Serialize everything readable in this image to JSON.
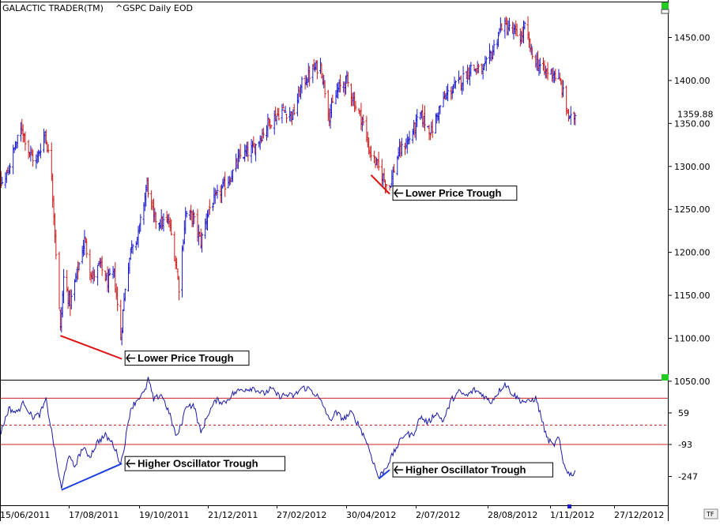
{
  "header": {
    "app_name": "GALACTIC TRADER(TM)",
    "symbol_label": "^GSPC Daily EOD"
  },
  "tf_label": "TF",
  "colors": {
    "up": "#1a1acc",
    "down": "#cc1a1a",
    "osc_line": "#1a1aa8",
    "ref_line": "#cc2222",
    "green_marker": "#22cc22",
    "frame": "#000000"
  },
  "chart_data": [
    {
      "type": "ohlc",
      "title": "",
      "ylim": [
        1050,
        1480
      ],
      "y_ticks": [
        1050,
        1100,
        1150,
        1200,
        1250,
        1300,
        1350,
        1400,
        1450
      ],
      "y_tick_labels": [
        "1050.00",
        "1100.00",
        "1150.00",
        "1200.00",
        "1250.00",
        "1300.00",
        "1350.00",
        "1400.00",
        "1450.00"
      ],
      "last_price": 1359.88,
      "last_price_label": "1359.88",
      "x_tick_labels": [
        "15/06/2011",
        "17/08/2011",
        "19/10/2011",
        "21/12/2011",
        "27/02/2012",
        "30/04/2012",
        "2/07/2012",
        "28/08/2012",
        "1/11/2012",
        "27/12/2012"
      ],
      "path_points": [
        {
          "date": "2011-06-02",
          "close": 1280
        },
        {
          "date": "2011-06-10",
          "close": 1270
        },
        {
          "date": "2011-06-20",
          "close": 1285
        },
        {
          "date": "2011-06-28",
          "close": 1320
        },
        {
          "date": "2011-07-05",
          "close": 1345
        },
        {
          "date": "2011-07-12",
          "close": 1315
        },
        {
          "date": "2011-07-18",
          "close": 1305
        },
        {
          "date": "2011-07-26",
          "close": 1340
        },
        {
          "date": "2011-08-01",
          "close": 1290
        },
        {
          "date": "2011-08-05",
          "close": 1200
        },
        {
          "date": "2011-08-09",
          "close": 1110
        },
        {
          "date": "2011-08-12",
          "close": 1170
        },
        {
          "date": "2011-08-18",
          "close": 1140
        },
        {
          "date": "2011-08-24",
          "close": 1175
        },
        {
          "date": "2011-08-31",
          "close": 1215
        },
        {
          "date": "2011-09-07",
          "close": 1170
        },
        {
          "date": "2011-09-14",
          "close": 1185
        },
        {
          "date": "2011-09-21",
          "close": 1165
        },
        {
          "date": "2011-09-27",
          "close": 1175
        },
        {
          "date": "2011-10-03",
          "close": 1100
        },
        {
          "date": "2011-10-07",
          "close": 1160
        },
        {
          "date": "2011-10-13",
          "close": 1210
        },
        {
          "date": "2011-10-19",
          "close": 1220
        },
        {
          "date": "2011-10-27",
          "close": 1280
        },
        {
          "date": "2011-11-02",
          "close": 1240
        },
        {
          "date": "2011-11-09",
          "close": 1235
        },
        {
          "date": "2011-11-16",
          "close": 1235
        },
        {
          "date": "2011-11-22",
          "close": 1190
        },
        {
          "date": "2011-11-25",
          "close": 1160
        },
        {
          "date": "2011-12-01",
          "close": 1245
        },
        {
          "date": "2011-12-08",
          "close": 1240
        },
        {
          "date": "2011-12-15",
          "close": 1212
        },
        {
          "date": "2011-12-22",
          "close": 1250
        },
        {
          "date": "2012-01-04",
          "close": 1275
        },
        {
          "date": "2012-01-12",
          "close": 1290
        },
        {
          "date": "2012-01-20",
          "close": 1312
        },
        {
          "date": "2012-02-01",
          "close": 1320
        },
        {
          "date": "2012-02-14",
          "close": 1350
        },
        {
          "date": "2012-02-27",
          "close": 1365
        },
        {
          "date": "2012-03-08",
          "close": 1360
        },
        {
          "date": "2012-03-16",
          "close": 1395
        },
        {
          "date": "2012-03-26",
          "close": 1412
        },
        {
          "date": "2012-04-02",
          "close": 1418
        },
        {
          "date": "2012-04-10",
          "close": 1360
        },
        {
          "date": "2012-04-18",
          "close": 1390
        },
        {
          "date": "2012-04-26",
          "close": 1400
        },
        {
          "date": "2012-05-04",
          "close": 1370
        },
        {
          "date": "2012-05-10",
          "close": 1355
        },
        {
          "date": "2012-05-16",
          "close": 1320
        },
        {
          "date": "2012-05-24",
          "close": 1300
        },
        {
          "date": "2012-06-01",
          "close": 1280
        },
        {
          "date": "2012-06-04",
          "close": 1278
        },
        {
          "date": "2012-06-12",
          "close": 1315
        },
        {
          "date": "2012-06-21",
          "close": 1330
        },
        {
          "date": "2012-07-02",
          "close": 1360
        },
        {
          "date": "2012-07-12",
          "close": 1340
        },
        {
          "date": "2012-07-20",
          "close": 1370
        },
        {
          "date": "2012-07-27",
          "close": 1385
        },
        {
          "date": "2012-08-08",
          "close": 1400
        },
        {
          "date": "2012-08-17",
          "close": 1415
        },
        {
          "date": "2012-08-28",
          "close": 1410
        },
        {
          "date": "2012-09-06",
          "close": 1435
        },
        {
          "date": "2012-09-14",
          "close": 1465
        },
        {
          "date": "2012-09-21",
          "close": 1460
        },
        {
          "date": "2012-10-02",
          "close": 1450
        },
        {
          "date": "2012-10-05",
          "close": 1462
        },
        {
          "date": "2012-10-12",
          "close": 1428
        },
        {
          "date": "2012-10-23",
          "close": 1410
        },
        {
          "date": "2012-10-31",
          "close": 1410
        },
        {
          "date": "2012-11-07",
          "close": 1395
        },
        {
          "date": "2012-11-15",
          "close": 1353
        },
        {
          "date": "2012-11-20",
          "close": 1360
        }
      ],
      "annotations": [
        {
          "text": "Lower Price Trough",
          "from": {
            "date": "2011-08-09",
            "price": 1103
          },
          "to": {
            "date": "2011-10-04",
            "price": 1076
          }
        },
        {
          "text": "Lower Price Trough",
          "from": {
            "date": "2012-05-18",
            "price": 1290
          },
          "to": {
            "date": "2012-06-04",
            "price": 1268
          }
        }
      ]
    },
    {
      "type": "line",
      "title": "",
      "y_ticks": [
        59,
        -93,
        -247
      ],
      "y_tick_labels": [
        "59",
        "-93",
        "-247"
      ],
      "ylim": [
        -330,
        230
      ],
      "reference_lines": [
        {
          "value": 130,
          "style": "solid"
        },
        {
          "value": 0,
          "style": "dashed"
        },
        {
          "value": -93,
          "style": "solid"
        }
      ],
      "series": [
        {
          "points": [
            {
              "date": "2011-06-02",
              "value": -200
            },
            {
              "date": "2011-06-09",
              "value": -130
            },
            {
              "date": "2011-06-16",
              "value": -30
            },
            {
              "date": "2011-06-23",
              "value": 80
            },
            {
              "date": "2011-06-30",
              "value": 60
            },
            {
              "date": "2011-07-07",
              "value": 110
            },
            {
              "date": "2011-07-14",
              "value": 40
            },
            {
              "date": "2011-07-21",
              "value": 50
            },
            {
              "date": "2011-07-27",
              "value": 120
            },
            {
              "date": "2011-08-02",
              "value": -60
            },
            {
              "date": "2011-08-08",
              "value": -250
            },
            {
              "date": "2011-08-10",
              "value": -310
            },
            {
              "date": "2011-08-16",
              "value": -150
            },
            {
              "date": "2011-08-22",
              "value": -200
            },
            {
              "date": "2011-08-29",
              "value": -110
            },
            {
              "date": "2011-09-05",
              "value": -150
            },
            {
              "date": "2011-09-12",
              "value": -80
            },
            {
              "date": "2011-09-19",
              "value": -50
            },
            {
              "date": "2011-09-26",
              "value": -90
            },
            {
              "date": "2011-10-03",
              "value": -185
            },
            {
              "date": "2011-10-06",
              "value": -110
            },
            {
              "date": "2011-10-12",
              "value": 80
            },
            {
              "date": "2011-10-19",
              "value": 130
            },
            {
              "date": "2011-10-25",
              "value": 160
            },
            {
              "date": "2011-10-28",
              "value": 225
            },
            {
              "date": "2011-11-02",
              "value": 120
            },
            {
              "date": "2011-11-09",
              "value": 150
            },
            {
              "date": "2011-11-16",
              "value": 60
            },
            {
              "date": "2011-11-23",
              "value": -60
            },
            {
              "date": "2011-11-28",
              "value": 20
            },
            {
              "date": "2011-12-02",
              "value": 100
            },
            {
              "date": "2011-12-09",
              "value": 90
            },
            {
              "date": "2011-12-15",
              "value": -40
            },
            {
              "date": "2011-12-22",
              "value": 60
            },
            {
              "date": "2011-12-29",
              "value": 120
            },
            {
              "date": "2012-01-06",
              "value": 110
            },
            {
              "date": "2012-01-13",
              "value": 150
            },
            {
              "date": "2012-01-20",
              "value": 170
            },
            {
              "date": "2012-02-01",
              "value": 180
            },
            {
              "date": "2012-02-10",
              "value": 150
            },
            {
              "date": "2012-02-17",
              "value": 175
            },
            {
              "date": "2012-02-24",
              "value": 140
            },
            {
              "date": "2012-03-02",
              "value": 145
            },
            {
              "date": "2012-03-09",
              "value": 140
            },
            {
              "date": "2012-03-16",
              "value": 180
            },
            {
              "date": "2012-03-23",
              "value": 175
            },
            {
              "date": "2012-03-30",
              "value": 140
            },
            {
              "date": "2012-04-06",
              "value": 80
            },
            {
              "date": "2012-04-10",
              "value": 20
            },
            {
              "date": "2012-04-16",
              "value": 60
            },
            {
              "date": "2012-04-23",
              "value": 30
            },
            {
              "date": "2012-04-30",
              "value": 60
            },
            {
              "date": "2012-05-07",
              "value": 0
            },
            {
              "date": "2012-05-14",
              "value": -80
            },
            {
              "date": "2012-05-21",
              "value": -190
            },
            {
              "date": "2012-05-25",
              "value": -255
            },
            {
              "date": "2012-06-01",
              "value": -200
            },
            {
              "date": "2012-06-04",
              "value": -170
            },
            {
              "date": "2012-06-11",
              "value": -100
            },
            {
              "date": "2012-06-18",
              "value": -40
            },
            {
              "date": "2012-06-25",
              "value": -50
            },
            {
              "date": "2012-07-02",
              "value": 40
            },
            {
              "date": "2012-07-09",
              "value": 10
            },
            {
              "date": "2012-07-16",
              "value": 60
            },
            {
              "date": "2012-07-23",
              "value": 20
            },
            {
              "date": "2012-07-30",
              "value": 120
            },
            {
              "date": "2012-08-06",
              "value": 160
            },
            {
              "date": "2012-08-13",
              "value": 140
            },
            {
              "date": "2012-08-20",
              "value": 170
            },
            {
              "date": "2012-08-27",
              "value": 150
            },
            {
              "date": "2012-09-04",
              "value": 110
            },
            {
              "date": "2012-09-11",
              "value": 160
            },
            {
              "date": "2012-09-17",
              "value": 200
            },
            {
              "date": "2012-09-24",
              "value": 150
            },
            {
              "date": "2012-10-01",
              "value": 120
            },
            {
              "date": "2012-10-08",
              "value": 110
            },
            {
              "date": "2012-10-15",
              "value": 130
            },
            {
              "date": "2012-10-19",
              "value": 60
            },
            {
              "date": "2012-10-25",
              "value": -60
            },
            {
              "date": "2012-10-31",
              "value": -100
            },
            {
              "date": "2012-11-05",
              "value": -60
            },
            {
              "date": "2012-11-09",
              "value": -180
            },
            {
              "date": "2012-11-15",
              "value": -240
            },
            {
              "date": "2012-11-20",
              "value": -225
            }
          ]
        }
      ],
      "annotations": [
        {
          "text": "Higher Oscillator Trough",
          "from": {
            "date": "2011-08-10",
            "value": -312
          },
          "to": {
            "date": "2011-10-04",
            "value": -185
          }
        },
        {
          "text": "Higher Oscillator Trough",
          "from": {
            "date": "2012-05-25",
            "value": -258
          },
          "to": {
            "date": "2012-06-04",
            "value": -215
          }
        }
      ]
    }
  ]
}
